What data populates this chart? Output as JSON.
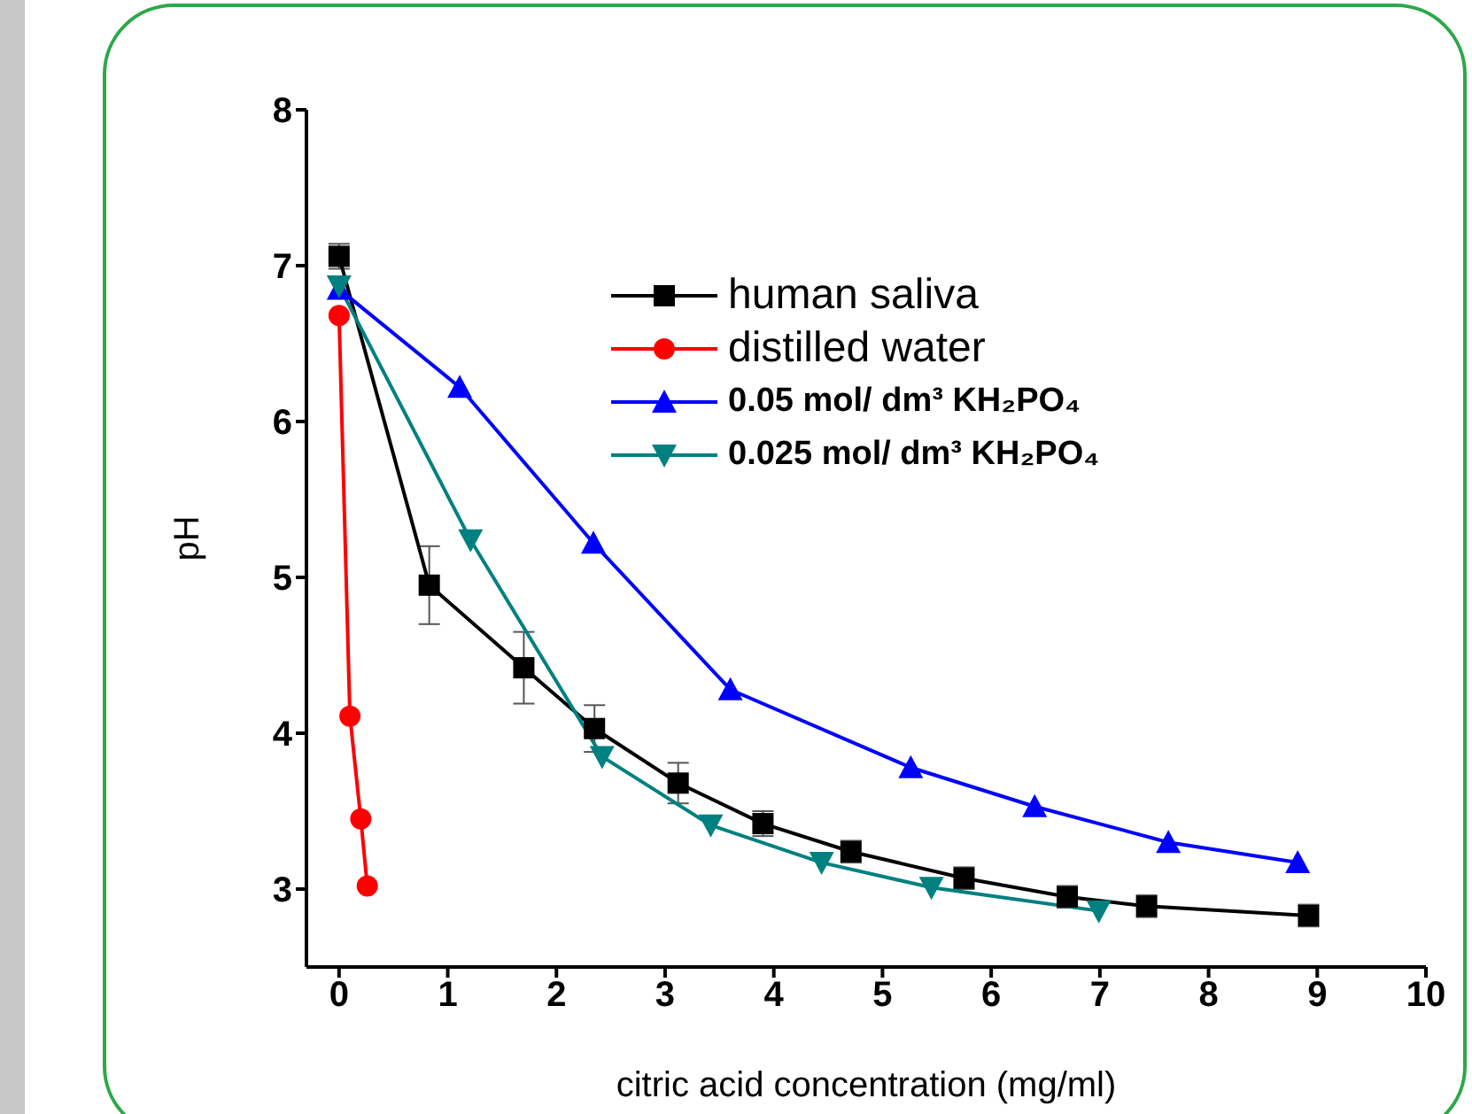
{
  "chart_data": {
    "type": "line",
    "xlabel": "citric acid concentration (mg/ml)",
    "ylabel": "pH",
    "xlim": [
      -0.3,
      10
    ],
    "xticks": [
      0,
      1,
      2,
      3,
      4,
      5,
      6,
      7,
      8,
      9,
      10
    ],
    "ylim": [
      2.5,
      8
    ],
    "yticks": [
      3,
      4,
      5,
      6,
      7,
      8
    ],
    "grid": false,
    "legend": "top right",
    "series": [
      {
        "name": "human saliva",
        "color": "#000000",
        "marker": "square",
        "x": [
          0,
          0.83,
          1.7,
          2.35,
          3.12,
          3.9,
          4.71,
          5.75,
          6.7,
          7.43,
          8.92
        ],
        "values": [
          7.06,
          4.95,
          4.42,
          4.03,
          3.68,
          3.42,
          3.24,
          3.07,
          2.95,
          2.89,
          2.83
        ],
        "errors": [
          0.08,
          0.25,
          0.23,
          0.15,
          0.13,
          0.08,
          0.07,
          0.07,
          0.07,
          0.07,
          0.07
        ]
      },
      {
        "name": "distilled water",
        "color": "#ff0000",
        "marker": "circle",
        "x": [
          0,
          0.1,
          0.2,
          0.26
        ],
        "values": [
          6.68,
          4.11,
          3.45,
          3.02
        ]
      },
      {
        "name": "0.05 mol/ dm³ KH₂PO₄",
        "color": "#0000ff",
        "marker": "triangle",
        "x": [
          0,
          1.11,
          2.34,
          3.6,
          5.26,
          6.4,
          7.63,
          8.82
        ],
        "values": [
          6.85,
          6.22,
          5.22,
          4.28,
          3.78,
          3.53,
          3.3,
          3.17
        ]
      },
      {
        "name": "0.025 mol/ dm³ KH₂PO₄",
        "color": "#008080",
        "marker": "triangle-down",
        "x": [
          0,
          1.21,
          2.42,
          3.42,
          4.44,
          5.45,
          6.99
        ],
        "values": [
          6.87,
          5.24,
          3.85,
          3.41,
          3.17,
          3.01,
          2.86
        ]
      }
    ]
  }
}
